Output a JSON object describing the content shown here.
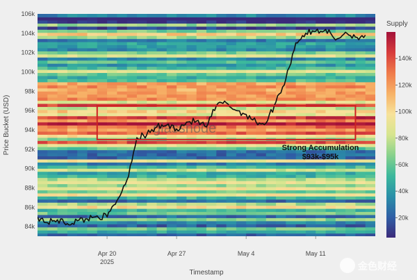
{
  "watermark": "glassnode",
  "corner_watermark": "金色财经",
  "chart_data": {
    "type": "heatmap",
    "title": "",
    "xlabel": "Timestamp",
    "ylabel": "Price Bucket (USD)",
    "x_ticks": [
      {
        "date": "2025-04-20",
        "label": "Apr 20",
        "sublabel": "2025"
      },
      {
        "date": "2025-04-27",
        "label": "Apr 27",
        "sublabel": ""
      },
      {
        "date": "2025-05-04",
        "label": "May 4",
        "sublabel": ""
      },
      {
        "date": "2025-05-11",
        "label": "May 11",
        "sublabel": ""
      }
    ],
    "x_range": [
      "2025-04-13",
      "2025-05-17"
    ],
    "y_ticks": [
      84000,
      86000,
      88000,
      90000,
      92000,
      94000,
      96000,
      98000,
      100000,
      102000,
      104000,
      106000
    ],
    "y_tick_labels": [
      "84k",
      "86k",
      "88k",
      "90k",
      "92k",
      "94k",
      "96k",
      "98k",
      "100k",
      "102k",
      "104k",
      "106k"
    ],
    "ylim": [
      83000,
      106000
    ],
    "colorbar": {
      "title": "Supply",
      "ticks": [
        20000,
        40000,
        60000,
        80000,
        100000,
        120000,
        140000
      ],
      "tick_labels": [
        "20k",
        "40k",
        "60k",
        "80k",
        "100k",
        "120k",
        "140k"
      ],
      "range": [
        5000,
        160000
      ],
      "colors": [
        "#3b2a7a",
        "#2f5fa6",
        "#2a8fa8",
        "#3bb89c",
        "#87d18c",
        "#d6e58f",
        "#f7e29a",
        "#f7b267",
        "#ef7b4a",
        "#d73c3c",
        "#a3123a"
      ]
    },
    "price_line": {
      "color": "#111111",
      "points": [
        [
          "2025-04-13",
          85000
        ],
        [
          "2025-04-14",
          84400
        ],
        [
          "2025-04-15",
          84700
        ],
        [
          "2025-04-16",
          84300
        ],
        [
          "2025-04-17",
          84600
        ],
        [
          "2025-04-18",
          84800
        ],
        [
          "2025-04-19",
          85100
        ],
        [
          "2025-04-20",
          85000
        ],
        [
          "2025-04-21",
          86700
        ],
        [
          "2025-04-22",
          88800
        ],
        [
          "2025-04-23",
          93200
        ],
        [
          "2025-04-24",
          93500
        ],
        [
          "2025-04-25",
          94300
        ],
        [
          "2025-04-26",
          94500
        ],
        [
          "2025-04-27",
          94100
        ],
        [
          "2025-04-28",
          94800
        ],
        [
          "2025-04-29",
          94900
        ],
        [
          "2025-04-30",
          94300
        ],
        [
          "2025-05-01",
          96500
        ],
        [
          "2025-05-02",
          96800
        ],
        [
          "2025-05-03",
          96000
        ],
        [
          "2025-05-04",
          95600
        ],
        [
          "2025-05-05",
          94800
        ],
        [
          "2025-05-06",
          94700
        ],
        [
          "2025-05-07",
          96900
        ],
        [
          "2025-05-08",
          99300
        ],
        [
          "2025-05-09",
          103000
        ],
        [
          "2025-05-10",
          104000
        ],
        [
          "2025-05-11",
          104200
        ],
        [
          "2025-05-12",
          104400
        ],
        [
          "2025-05-13",
          103300
        ],
        [
          "2025-05-14",
          104100
        ],
        [
          "2025-05-15",
          103600
        ],
        [
          "2025-05-16",
          103800
        ]
      ]
    },
    "annotation": {
      "box": {
        "x_start": "2025-04-19",
        "x_end": "2025-05-15",
        "y_start": 93000,
        "y_end": 96500,
        "color": "#cc2222"
      },
      "text_line1": "Strong Accumulation",
      "text_line2": "$93k-$95k"
    }
  }
}
